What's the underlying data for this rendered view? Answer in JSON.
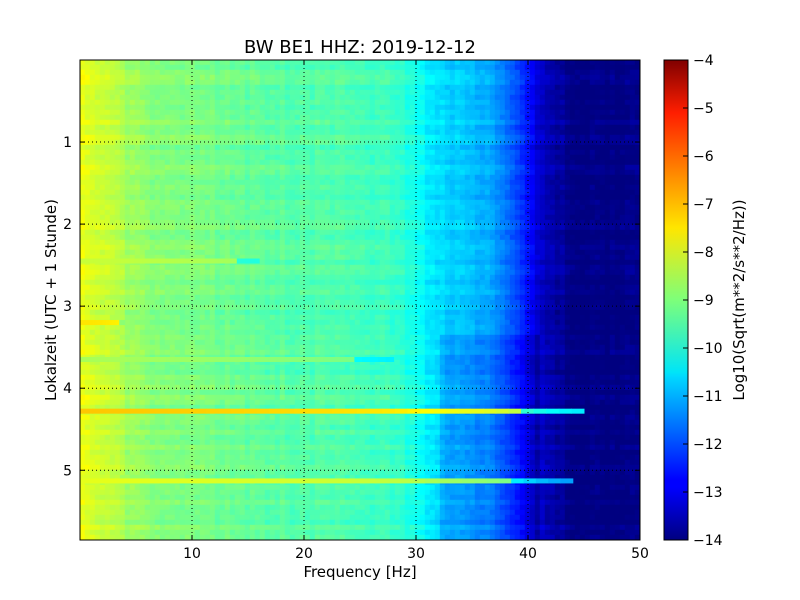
{
  "chart_data": {
    "type": "heatmap",
    "title": "BW BE1 HHZ: 2019-12-12",
    "xlabel": "Frequency [Hz]",
    "ylabel": "Lokalzeit (UTC + 1 Stunde)",
    "xlim": [
      0,
      50
    ],
    "ylim": [
      5.85,
      0.0
    ],
    "xticks": [
      10,
      20,
      30,
      40,
      50
    ],
    "yticks": [
      1,
      2,
      3,
      4,
      5
    ],
    "grid": true,
    "colormap": "jet",
    "colorbar": {
      "label": "Log10(Sqrt(m**2/s**2/Hz))",
      "range": [
        -14,
        -4
      ],
      "ticks": [
        -4,
        -5,
        -6,
        -7,
        -8,
        -9,
        -10,
        -11,
        -12,
        -13,
        -14
      ]
    },
    "spectrum_profile": {
      "frequency_hz": [
        0,
        2,
        5,
        8,
        12,
        16,
        20,
        24,
        28,
        30,
        31,
        33,
        35,
        37,
        38,
        39,
        40,
        41,
        42,
        44,
        46,
        50
      ],
      "log10_amplitude": [
        -8.0,
        -8.2,
        -8.8,
        -9.0,
        -9.1,
        -9.3,
        -9.4,
        -9.5,
        -9.7,
        -10.0,
        -10.4,
        -10.7,
        -10.9,
        -11.2,
        -11.5,
        -12.0,
        -12.6,
        -13.2,
        -13.6,
        -13.9,
        -14.0,
        -14.0
      ]
    },
    "features": [
      {
        "time_h": 4.28,
        "f_max_hz": 45,
        "log10_amplitude": -7.2,
        "description": "strong broadband horizontal band"
      },
      {
        "time_h": 5.13,
        "f_max_hz": 44,
        "log10_amplitude": -8.0,
        "description": "secondary broadband band"
      },
      {
        "time_h": 3.2,
        "f_max_hz": 4,
        "log10_amplitude": -7.5,
        "description": "short low-frequency burst"
      },
      {
        "time_h": 2.45,
        "f_max_hz": 16,
        "log10_amplitude": -8.3,
        "description": "weak band"
      },
      {
        "time_h": 3.65,
        "f_max_hz": 28,
        "log10_amplitude": -8.6,
        "description": "weak band"
      },
      {
        "time_h": 3.35,
        "f_max_hz": 50,
        "log10_amplitude": -14.0,
        "description": "noise floor change above 32 Hz after this time"
      }
    ]
  }
}
